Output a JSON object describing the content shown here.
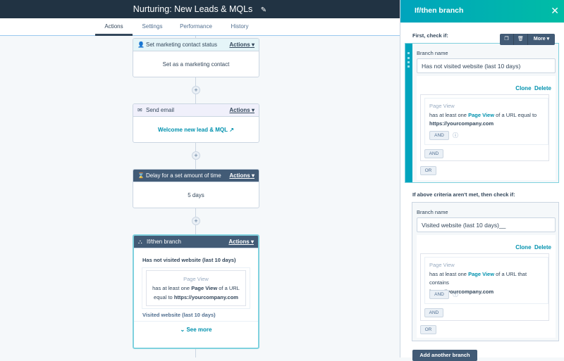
{
  "workflow": {
    "title": "Nurturing: New Leads & MQLs",
    "edit_icon": "pencil-icon"
  },
  "tabs": [
    {
      "label": "Actions",
      "active": true
    },
    {
      "label": "Settings"
    },
    {
      "label": "Performance"
    },
    {
      "label": "History"
    }
  ],
  "cards": [
    {
      "icon": "contact-icon",
      "title": "Set marketing contact status",
      "actions": "Actions",
      "body": "Set as a marketing contact"
    },
    {
      "icon": "email-icon",
      "title": "Send email",
      "actions": "Actions",
      "body": "Welcome new lead & MQL"
    },
    {
      "icon": "hourglass-icon",
      "title": "Delay for a set amount of time",
      "actions": "Actions",
      "body": "5 days"
    },
    {
      "icon": "branch-icon",
      "title": "If/then branch",
      "actions": "Actions",
      "branch1": "Has not visited website (last 10 days)",
      "filter_title": "Page View",
      "filter_pre": "has at least one",
      "filter_bold": "Page View",
      "filter_mid": "of a URL",
      "filter_mid2": "equal to",
      "filter_url": "https://yourcompany.com",
      "branch2": "Visited website (last 10 days)",
      "see_more": "See more"
    }
  ],
  "panel": {
    "title": "If/then branch",
    "first_label": "First, check if:",
    "toolbar": {
      "more": "More"
    },
    "second_label": "If above criteria aren't met, then check if:",
    "add_branch": "Add another branch",
    "branches": [
      {
        "name_label": "Branch name",
        "name": "Has not visited website (last 10 days)",
        "clone": "Clone",
        "delete": "Delete",
        "filter_title": "Page View",
        "pre": "has at least one",
        "link": "Page View",
        "post": "of a URL equal to",
        "url": "https://yourcompany.com",
        "and1": "AND",
        "and2": "AND",
        "or": "OR"
      },
      {
        "name_label": "Branch name",
        "name": "Visited website (last 10 days)__",
        "clone": "Clone",
        "delete": "Delete",
        "filter_title": "Page View",
        "pre": "has at least one",
        "link": "Page View",
        "post": "of a URL that contains",
        "url": "https://yourcompany.com",
        "and1": "AND",
        "and2": "AND",
        "or": "OR"
      }
    ]
  },
  "colors": {
    "navy": "#213343",
    "teal": "#00a4bd",
    "link": "#0091ae",
    "dark_header": "#425b76"
  }
}
